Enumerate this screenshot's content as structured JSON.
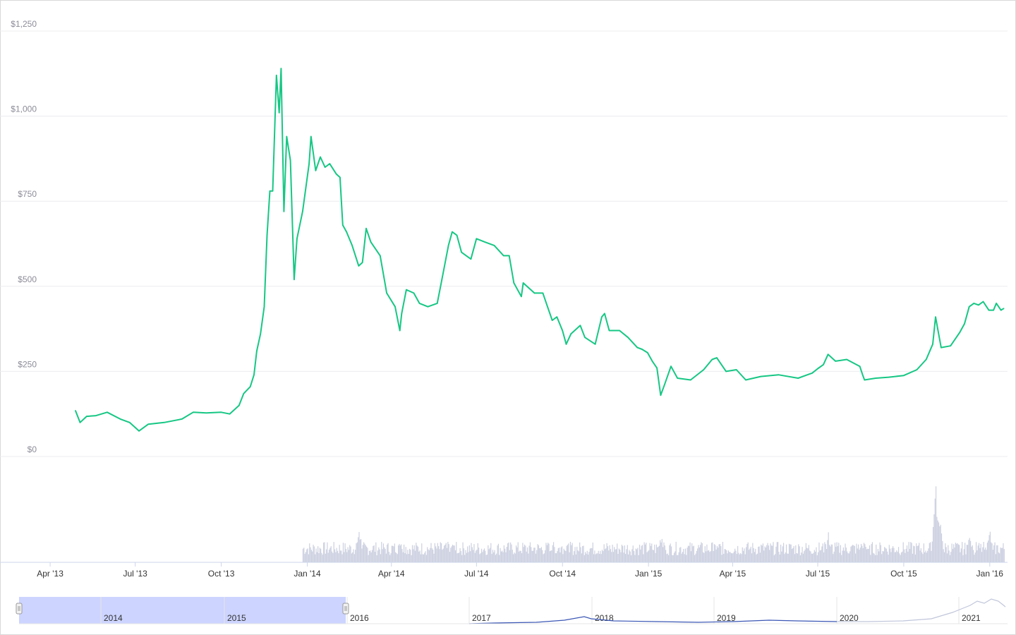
{
  "colors": {
    "price_line": "#16c784",
    "volume_bar": "#ccd0e0",
    "grid": "#ececf0",
    "navigator_mask": "#ccd4ff",
    "navigator_line": "#3b57b5",
    "navigator_faded": "#c0c6db"
  },
  "chart_data": {
    "type": "line",
    "y_ticks": [
      "$0",
      "$250",
      "$500",
      "$750",
      "$1,000",
      "$1,250"
    ],
    "y_tick_values": [
      0,
      250,
      500,
      750,
      1000,
      1250
    ],
    "ylim": [
      0,
      1250
    ],
    "x_ticks": [
      "Apr '13",
      "Jul '13",
      "Oct '13",
      "Jan '14",
      "Apr '14",
      "Jul '14",
      "Oct '14",
      "Jan '15",
      "Apr '15",
      "Jul '15",
      "Oct '15",
      "Jan '16"
    ],
    "x_tick_dates": [
      "2013-04-01",
      "2013-07-01",
      "2013-10-01",
      "2014-01-01",
      "2014-04-01",
      "2014-07-01",
      "2014-10-01",
      "2015-01-01",
      "2015-04-01",
      "2015-07-01",
      "2015-10-01",
      "2016-01-01"
    ],
    "xlim": [
      "2013-03-01",
      "2016-01-20"
    ],
    "grid": true,
    "series": [
      {
        "values": [
          [
            "2013-04-28",
            135
          ],
          [
            "2013-05-03",
            100
          ],
          [
            "2013-05-10",
            118
          ],
          [
            "2013-05-20",
            120
          ],
          [
            "2013-06-01",
            130
          ],
          [
            "2013-06-15",
            110
          ],
          [
            "2013-06-25",
            100
          ],
          [
            "2013-07-05",
            75
          ],
          [
            "2013-07-15",
            95
          ],
          [
            "2013-08-01",
            100
          ],
          [
            "2013-08-20",
            110
          ],
          [
            "2013-09-01",
            130
          ],
          [
            "2013-09-15",
            128
          ],
          [
            "2013-10-01",
            130
          ],
          [
            "2013-10-10",
            125
          ],
          [
            "2013-10-20",
            150
          ],
          [
            "2013-10-25",
            185
          ],
          [
            "2013-11-01",
            205
          ],
          [
            "2013-11-05",
            240
          ],
          [
            "2013-11-08",
            310
          ],
          [
            "2013-11-12",
            360
          ],
          [
            "2013-11-16",
            440
          ],
          [
            "2013-11-19",
            650
          ],
          [
            "2013-11-22",
            780
          ],
          [
            "2013-11-25",
            780
          ],
          [
            "2013-11-29",
            1120
          ],
          [
            "2013-12-02",
            1010
          ],
          [
            "2013-12-04",
            1140
          ],
          [
            "2013-12-07",
            720
          ],
          [
            "2013-12-10",
            940
          ],
          [
            "2013-12-14",
            870
          ],
          [
            "2013-12-18",
            520
          ],
          [
            "2013-12-21",
            640
          ],
          [
            "2013-12-27",
            720
          ],
          [
            "2014-01-03",
            860
          ],
          [
            "2014-01-05",
            940
          ],
          [
            "2014-01-10",
            840
          ],
          [
            "2014-01-15",
            880
          ],
          [
            "2014-01-20",
            850
          ],
          [
            "2014-01-25",
            860
          ],
          [
            "2014-02-01",
            830
          ],
          [
            "2014-02-05",
            820
          ],
          [
            "2014-02-08",
            680
          ],
          [
            "2014-02-12",
            660
          ],
          [
            "2014-02-18",
            620
          ],
          [
            "2014-02-25",
            560
          ],
          [
            "2014-03-01",
            570
          ],
          [
            "2014-03-05",
            670
          ],
          [
            "2014-03-10",
            630
          ],
          [
            "2014-03-20",
            590
          ],
          [
            "2014-03-27",
            480
          ],
          [
            "2014-04-05",
            440
          ],
          [
            "2014-04-10",
            370
          ],
          [
            "2014-04-12",
            420
          ],
          [
            "2014-04-17",
            490
          ],
          [
            "2014-04-25",
            480
          ],
          [
            "2014-05-01",
            450
          ],
          [
            "2014-05-10",
            440
          ],
          [
            "2014-05-20",
            450
          ],
          [
            "2014-05-25",
            520
          ],
          [
            "2014-06-01",
            620
          ],
          [
            "2014-06-05",
            660
          ],
          [
            "2014-06-10",
            650
          ],
          [
            "2014-06-15",
            600
          ],
          [
            "2014-06-20",
            590
          ],
          [
            "2014-06-25",
            580
          ],
          [
            "2014-07-01",
            640
          ],
          [
            "2014-07-10",
            630
          ],
          [
            "2014-07-20",
            620
          ],
          [
            "2014-07-30",
            590
          ],
          [
            "2014-08-05",
            590
          ],
          [
            "2014-08-10",
            510
          ],
          [
            "2014-08-18",
            470
          ],
          [
            "2014-08-20",
            510
          ],
          [
            "2014-09-01",
            480
          ],
          [
            "2014-09-10",
            480
          ],
          [
            "2014-09-15",
            440
          ],
          [
            "2014-09-20",
            400
          ],
          [
            "2014-09-25",
            410
          ],
          [
            "2014-10-01",
            370
          ],
          [
            "2014-10-05",
            330
          ],
          [
            "2014-10-10",
            360
          ],
          [
            "2014-10-20",
            385
          ],
          [
            "2014-10-25",
            350
          ],
          [
            "2014-11-05",
            330
          ],
          [
            "2014-11-12",
            410
          ],
          [
            "2014-11-15",
            420
          ],
          [
            "2014-11-20",
            370
          ],
          [
            "2014-12-01",
            370
          ],
          [
            "2014-12-10",
            350
          ],
          [
            "2014-12-20",
            320
          ],
          [
            "2014-12-25",
            315
          ],
          [
            "2014-12-31",
            305
          ],
          [
            "2015-01-05",
            280
          ],
          [
            "2015-01-10",
            260
          ],
          [
            "2015-01-14",
            180
          ],
          [
            "2015-01-18",
            210
          ],
          [
            "2015-01-25",
            265
          ],
          [
            "2015-02-01",
            230
          ],
          [
            "2015-02-15",
            225
          ],
          [
            "2015-03-01",
            255
          ],
          [
            "2015-03-10",
            285
          ],
          [
            "2015-03-15",
            290
          ],
          [
            "2015-03-25",
            250
          ],
          [
            "2015-04-05",
            255
          ],
          [
            "2015-04-15",
            225
          ],
          [
            "2015-05-01",
            235
          ],
          [
            "2015-05-20",
            240
          ],
          [
            "2015-06-10",
            230
          ],
          [
            "2015-06-25",
            245
          ],
          [
            "2015-07-01",
            258
          ],
          [
            "2015-07-07",
            270
          ],
          [
            "2015-07-12",
            300
          ],
          [
            "2015-07-20",
            280
          ],
          [
            "2015-08-01",
            285
          ],
          [
            "2015-08-15",
            265
          ],
          [
            "2015-08-18",
            240
          ],
          [
            "2015-08-20",
            225
          ],
          [
            "2015-09-01",
            230
          ],
          [
            "2015-09-15",
            233
          ],
          [
            "2015-10-01",
            238
          ],
          [
            "2015-10-15",
            255
          ],
          [
            "2015-10-25",
            285
          ],
          [
            "2015-11-01",
            330
          ],
          [
            "2015-11-04",
            410
          ],
          [
            "2015-11-06",
            380
          ],
          [
            "2015-11-10",
            320
          ],
          [
            "2015-11-20",
            325
          ],
          [
            "2015-11-30",
            365
          ],
          [
            "2015-12-05",
            390
          ],
          [
            "2015-12-10",
            440
          ],
          [
            "2015-12-15",
            450
          ],
          [
            "2015-12-20",
            445
          ],
          [
            "2015-12-25",
            455
          ],
          [
            "2015-12-31",
            430
          ],
          [
            "2016-01-05",
            430
          ],
          [
            "2016-01-08",
            450
          ],
          [
            "2016-01-13",
            430
          ],
          [
            "2016-01-16",
            435
          ]
        ]
      }
    ],
    "volume": {
      "start": "2013-12-27",
      "end": "2016-01-16",
      "note_peaks": [
        [
          "2014-02-25",
          1
        ],
        [
          "2014-04-10",
          0.7
        ],
        [
          "2014-06-05",
          0.55
        ],
        [
          "2014-09-20",
          0.6
        ],
        [
          "2014-10-05",
          0.55
        ],
        [
          "2015-01-14",
          0.85
        ],
        [
          "2015-03-15",
          0.45
        ],
        [
          "2015-07-12",
          0.8
        ],
        [
          "2015-08-20",
          0.6
        ],
        [
          "2015-11-04",
          2.3
        ],
        [
          "2015-11-08",
          1.2
        ],
        [
          "2015-12-10",
          1.0
        ],
        [
          "2015-12-31",
          1.05
        ]
      ]
    },
    "navigator": {
      "year_labels": [
        "2014",
        "2015",
        "2016",
        "2017",
        "2018",
        "2019",
        "2020",
        "2021"
      ]
    }
  }
}
